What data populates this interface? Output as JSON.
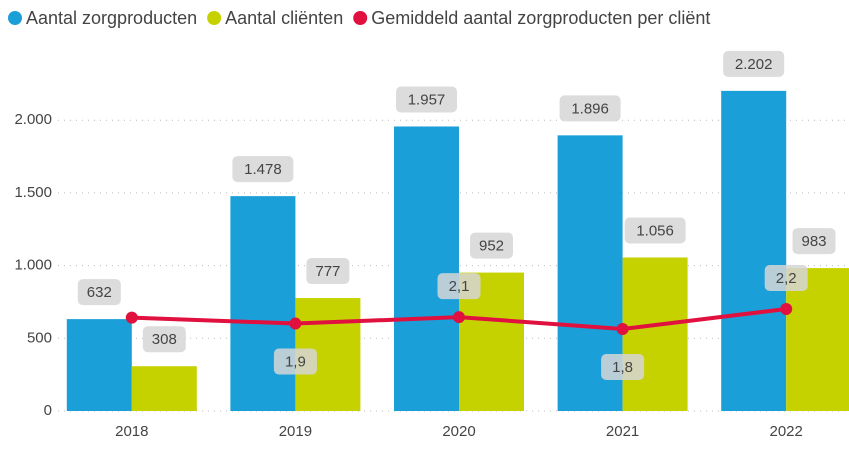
{
  "chart_data": {
    "type": "bar",
    "categories": [
      "2018",
      "2019",
      "2020",
      "2021",
      "2022"
    ],
    "series": [
      {
        "name": "Aantal zorgproducten",
        "color": "#1a9fd9",
        "values": [
          632,
          1478,
          1957,
          1896,
          2202
        ],
        "value_labels": [
          "632",
          "1.478",
          "1.957",
          "1.896",
          "2.202"
        ]
      },
      {
        "name": "Aantal cliënten",
        "color": "#c5d200",
        "values": [
          308,
          777,
          952,
          1056,
          983
        ],
        "value_labels": [
          "308",
          "777",
          "952",
          "1.056",
          "983"
        ]
      },
      {
        "name": "Gemiddeld aantal zorgproducten per cliënt",
        "color": "#e0113f",
        "type": "line",
        "axis": "y2",
        "values": [
          2.05,
          1.92,
          2.06,
          1.8,
          2.24
        ],
        "value_labels": [
          null,
          "1,9",
          "2,1",
          "1,8",
          "2,2"
        ]
      }
    ],
    "ylim": [
      0,
      2600
    ],
    "yticks": [
      0,
      500,
      {
        "value": 1000,
        "label": "1.000"
      },
      {
        "value": 1500,
        "label": "1.500"
      },
      {
        "value": 2000,
        "label": "2.000"
      }
    ],
    "y2lim": [
      0,
      8.3
    ],
    "grid": true,
    "legend": "top-left"
  }
}
